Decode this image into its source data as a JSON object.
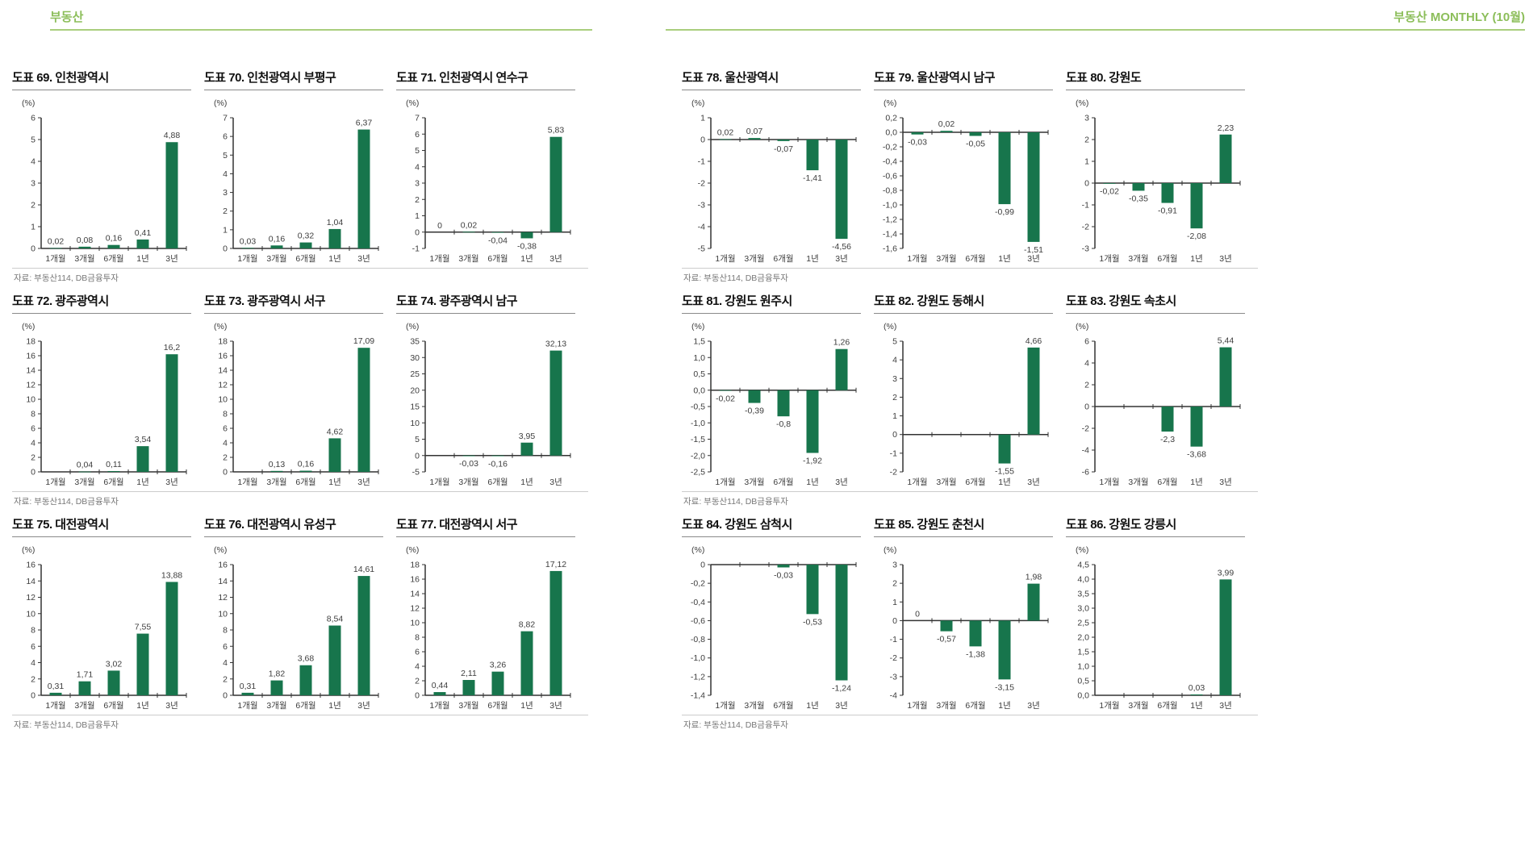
{
  "page": {
    "header_left": "부동산",
    "header_right": "부동산 MONTHLY (10월)",
    "source": "자료: 부동산114, DB금융투자",
    "accent_text_color": "#8cbe5a",
    "accent_line_color": "#a9ce7d",
    "bar_color": "#17754c",
    "categories": [
      "1개월",
      "3개월",
      "6개월",
      "1년",
      "3년"
    ],
    "ylabel": "(%)"
  },
  "chart_data": [
    {
      "id": "69",
      "title": "도표 69. 인천광역시",
      "type": "bar",
      "group": "left",
      "row": 0,
      "values": [
        0.02,
        0.08,
        0.16,
        0.41,
        4.88
      ],
      "labels": [
        "0,02",
        "0,08",
        "0,16",
        "0,41",
        "4,88"
      ],
      "ymin": 0,
      "ymax": 6,
      "ticks": [
        "6",
        "5",
        "4",
        "3",
        "2",
        "1",
        "0"
      ]
    },
    {
      "id": "70",
      "title": "도표 70. 인천광역시 부평구",
      "type": "bar",
      "group": "left",
      "row": 0,
      "values": [
        0.03,
        0.16,
        0.32,
        1.04,
        6.37
      ],
      "labels": [
        "0,03",
        "0,16",
        "0,32",
        "1,04",
        "6,37"
      ],
      "ymin": 0,
      "ymax": 7,
      "ticks": [
        "7",
        "6",
        "5",
        "4",
        "3",
        "2",
        "1",
        "0"
      ]
    },
    {
      "id": "71",
      "title": "도표 71. 인천광역시 연수구",
      "type": "bar",
      "group": "left",
      "row": 0,
      "values": [
        0,
        0.02,
        -0.04,
        -0.38,
        5.83
      ],
      "labels": [
        "0",
        "0,02",
        "-0,04",
        "-0,38",
        "5,83"
      ],
      "ymin": -1,
      "ymax": 7,
      "ticks": [
        "7",
        "6",
        "5",
        "4",
        "3",
        "2",
        "1",
        "0",
        "-1"
      ]
    },
    {
      "id": "72",
      "title": "도표 72. 광주광역시",
      "type": "bar",
      "group": "left",
      "row": 1,
      "values": [
        null,
        0.04,
        0.11,
        3.54,
        16.2
      ],
      "labels": [
        null,
        "0,04",
        "0,11",
        "3,54",
        "16,2"
      ],
      "ymin": 0,
      "ymax": 18,
      "ticks": [
        "18",
        "16",
        "14",
        "12",
        "10",
        "8",
        "6",
        "4",
        "2",
        "0"
      ]
    },
    {
      "id": "73",
      "title": "도표 73. 광주광역시 서구",
      "type": "bar",
      "group": "left",
      "row": 1,
      "values": [
        null,
        0.13,
        0.16,
        4.62,
        17.09
      ],
      "labels": [
        null,
        "0,13",
        "0,16",
        "4,62",
        "17,09"
      ],
      "ymin": 0,
      "ymax": 18,
      "ticks": [
        "18",
        "16",
        "14",
        "12",
        "10",
        "8",
        "6",
        "4",
        "2",
        "0"
      ]
    },
    {
      "id": "74",
      "title": "도표 74. 광주광역시 남구",
      "type": "bar",
      "group": "left",
      "row": 1,
      "values": [
        null,
        -0.03,
        -0.16,
        3.95,
        32.13
      ],
      "labels": [
        null,
        "-0,03",
        "-0,16",
        "3,95",
        "32,13"
      ],
      "ymin": -5,
      "ymax": 35,
      "ticks": [
        "35",
        "30",
        "25",
        "20",
        "15",
        "10",
        "5",
        "0",
        "-5"
      ]
    },
    {
      "id": "75",
      "title": "도표 75. 대전광역시",
      "type": "bar",
      "group": "left",
      "row": 2,
      "values": [
        0.31,
        1.71,
        3.02,
        7.55,
        13.88
      ],
      "labels": [
        "0,31",
        "1,71",
        "3,02",
        "7,55",
        "13,88"
      ],
      "ymin": 0,
      "ymax": 16,
      "ticks": [
        "16",
        "14",
        "12",
        "10",
        "8",
        "6",
        "4",
        "2",
        "0"
      ]
    },
    {
      "id": "76",
      "title": "도표 76. 대전광역시 유성구",
      "type": "bar",
      "group": "left",
      "row": 2,
      "values": [
        0.31,
        1.82,
        3.68,
        8.54,
        14.61
      ],
      "labels": [
        "0,31",
        "1,82",
        "3,68",
        "8,54",
        "14,61"
      ],
      "ymin": 0,
      "ymax": 16,
      "ticks": [
        "16",
        "14",
        "12",
        "10",
        "8",
        "6",
        "4",
        "2",
        "0"
      ]
    },
    {
      "id": "77",
      "title": "도표 77. 대전광역시 서구",
      "type": "bar",
      "group": "left",
      "row": 2,
      "values": [
        0.44,
        2.11,
        3.26,
        8.82,
        17.12
      ],
      "labels": [
        "0,44",
        "2,11",
        "3,26",
        "8,82",
        "17,12"
      ],
      "ymin": 0,
      "ymax": 18,
      "ticks": [
        "18",
        "16",
        "14",
        "12",
        "10",
        "8",
        "6",
        "4",
        "2",
        "0"
      ]
    },
    {
      "id": "78",
      "title": "도표 78. 울산광역시",
      "type": "bar",
      "group": "right",
      "row": 0,
      "values": [
        0.02,
        0.07,
        -0.07,
        -1.41,
        -4.56
      ],
      "labels": [
        "0,02",
        "0,07",
        "-0,07",
        "-1,41",
        "-4,56"
      ],
      "ymin": -5,
      "ymax": 1,
      "ticks": [
        "1",
        "0",
        "-1",
        "-2",
        "-3",
        "-4",
        "-5"
      ]
    },
    {
      "id": "79",
      "title": "도표 79. 울산광역시 남구",
      "type": "bar",
      "group": "right",
      "row": 0,
      "values": [
        -0.03,
        0.02,
        -0.05,
        -0.99,
        -1.51
      ],
      "labels": [
        "-0,03",
        "0,02",
        "-0,05",
        "-0,99",
        "-1,51"
      ],
      "ymin": -1.6,
      "ymax": 0.2,
      "ticks": [
        "0,2",
        "0,0",
        "-0,2",
        "-0,4",
        "-0,6",
        "-0,8",
        "-1,0",
        "-1,2",
        "-1,4",
        "-1,6"
      ]
    },
    {
      "id": "80",
      "title": "도표 80. 강원도",
      "type": "bar",
      "group": "right",
      "row": 0,
      "values": [
        -0.02,
        -0.35,
        -0.91,
        -2.08,
        2.23
      ],
      "labels": [
        "-0,02",
        "-0,35",
        "-0,91",
        "-2,08",
        "2,23"
      ],
      "ymin": -3,
      "ymax": 3,
      "ticks": [
        "3",
        "2",
        "1",
        "0",
        "-1",
        "-2",
        "-3"
      ]
    },
    {
      "id": "81",
      "title": "도표 81. 강원도 원주시",
      "type": "bar",
      "group": "right",
      "row": 1,
      "values": [
        -0.02,
        -0.39,
        -0.8,
        -1.92,
        1.26
      ],
      "labels": [
        "-0,02",
        "-0,39",
        "-0,8",
        "-1,92",
        "1,26"
      ],
      "ymin": -2.5,
      "ymax": 1.5,
      "ticks": [
        "1,5",
        "1,0",
        "0,5",
        "0,0",
        "-0,5",
        "-1,0",
        "-1,5",
        "-2,0",
        "-2,5"
      ]
    },
    {
      "id": "82",
      "title": "도표 82. 강원도 동해시",
      "type": "bar",
      "group": "right",
      "row": 1,
      "values": [
        null,
        null,
        null,
        -1.55,
        4.66
      ],
      "labels": [
        null,
        null,
        null,
        "-1,55",
        "4,66"
      ],
      "ymin": -2,
      "ymax": 5,
      "ticks": [
        "5",
        "4",
        "3",
        "2",
        "1",
        "0",
        "-1",
        "-2"
      ]
    },
    {
      "id": "83",
      "title": "도표 83. 강원도 속초시",
      "type": "bar",
      "group": "right",
      "row": 1,
      "values": [
        null,
        null,
        -2.3,
        -3.68,
        5.44
      ],
      "labels": [
        null,
        null,
        "-2,3",
        "-3,68",
        "5,44"
      ],
      "ymin": -6,
      "ymax": 6,
      "ticks": [
        "6",
        "4",
        "2",
        "0",
        "-2",
        "-4",
        "-6"
      ]
    },
    {
      "id": "84",
      "title": "도표 84. 강원도 삼척시",
      "type": "bar",
      "group": "right",
      "row": 2,
      "values": [
        null,
        null,
        -0.03,
        -0.53,
        -1.24
      ],
      "labels": [
        null,
        null,
        "-0,03",
        "-0,53",
        "-1,24"
      ],
      "ymin": -1.4,
      "ymax": 0,
      "ticks": [
        "0",
        "-0,2",
        "-0,4",
        "-0,6",
        "-0,8",
        "-1,0",
        "-1,2",
        "-1,4"
      ]
    },
    {
      "id": "85",
      "title": "도표 85. 강원도 춘천시",
      "type": "bar",
      "group": "right",
      "row": 2,
      "values": [
        0,
        -0.57,
        -1.38,
        -3.15,
        1.98
      ],
      "labels": [
        "0",
        "-0,57",
        "-1,38",
        "-3,15",
        "1,98"
      ],
      "ymin": -4,
      "ymax": 3,
      "ticks": [
        "3",
        "2",
        "1",
        "0",
        "-1",
        "-2",
        "-3",
        "-4"
      ]
    },
    {
      "id": "86",
      "title": "도표 86. 강원도 강릉시",
      "type": "bar",
      "group": "right",
      "row": 2,
      "values": [
        null,
        null,
        null,
        0.03,
        3.99
      ],
      "labels": [
        null,
        null,
        null,
        "0,03",
        "3,99"
      ],
      "ymin": 0,
      "ymax": 4.5,
      "ticks": [
        "4,5",
        "4,0",
        "3,5",
        "3,0",
        "2,5",
        "2,0",
        "1,5",
        "1,0",
        "0,5",
        "0,0"
      ]
    }
  ]
}
